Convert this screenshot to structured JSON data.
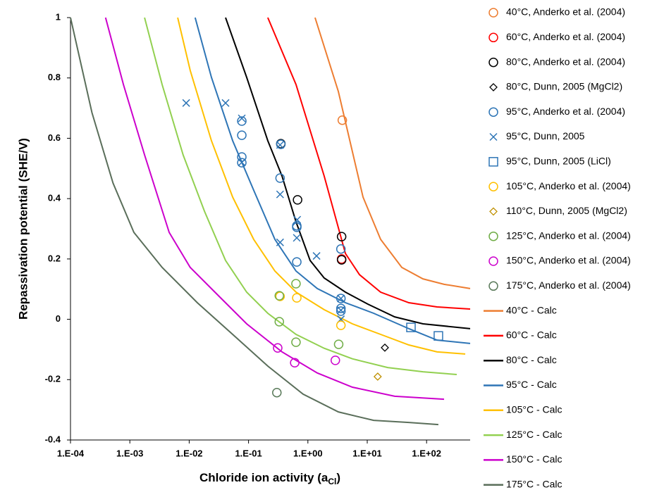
{
  "chart_data": {
    "type": "scatter",
    "xlabel": [
      "Chloride ion activity (a",
      "Cl",
      ")"
    ],
    "ylabel": "Repassivation potential (SHE/V)",
    "xscale": "log",
    "xlim": [
      0.0001,
      542
    ],
    "ylim": [
      -0.4,
      1
    ],
    "xticks": [
      {
        "value": 0.0001,
        "label": "1.E-04"
      },
      {
        "value": 0.001,
        "label": "1.E-03"
      },
      {
        "value": 0.01,
        "label": "1.E-02"
      },
      {
        "value": 0.1,
        "label": "1.E-01"
      },
      {
        "value": 1,
        "label": "1.E+00"
      },
      {
        "value": 10,
        "label": "1.E+01"
      },
      {
        "value": 100,
        "label": "1.E+02"
      }
    ],
    "yticks": [
      -0.4,
      -0.2,
      0,
      0.2,
      0.4,
      0.6,
      0.8,
      1
    ],
    "grid": false,
    "legend": "right",
    "series": [
      {
        "name": "40°C, Anderko et al. (2004)",
        "color": "#ed7d31",
        "style": "circle",
        "x": [
          3.8
        ],
        "values": [
          0.66
        ]
      },
      {
        "name": "60°C, Anderko et al. (2004)",
        "color": "#ff0000",
        "style": "circle",
        "x": [
          3.7
        ],
        "values": [
          0.2
        ]
      },
      {
        "name": "80°C, Anderko et al. (2004)",
        "color": "#000000",
        "style": "circle",
        "x": [
          0.35,
          0.67,
          3.7,
          3.7
        ],
        "values": [
          0.582,
          0.396,
          0.274,
          0.197
        ]
      },
      {
        "name": "80°C, Dunn, 2005 (MgCl2)",
        "color": "#000000",
        "style": "diamond",
        "x": [
          19.8
        ],
        "values": [
          -0.094
        ]
      },
      {
        "name": "95°C, Anderko et al. (2004)",
        "color": "#2e75b6",
        "style": "circle",
        "x": [
          0.077,
          0.077,
          0.077,
          0.077,
          0.35,
          0.34,
          0.65,
          0.65,
          0.65,
          3.6,
          3.6,
          3.6,
          3.6
        ],
        "values": [
          0.657,
          0.61,
          0.538,
          0.519,
          0.58,
          0.468,
          0.31,
          0.305,
          0.19,
          0.233,
          0.069,
          0.036,
          0.027
        ]
      },
      {
        "name": "95°C, Dunn, 2005",
        "color": "#2e75b6",
        "style": "x",
        "x": [
          0.0089,
          0.041,
          0.077,
          0.077,
          0.34,
          0.34,
          0.34,
          0.66,
          0.65,
          1.4,
          3.6,
          3.6,
          3.6
        ],
        "values": [
          0.717,
          0.717,
          0.666,
          0.52,
          0.578,
          0.414,
          0.255,
          0.33,
          0.27,
          0.21,
          0.069,
          0.03,
          0.0
        ]
      },
      {
        "name": "95°C, Dunn, 2005 (LiCl)",
        "color": "#2e75b6",
        "style": "square",
        "x": [
          54.5,
          158
        ],
        "values": [
          -0.027,
          -0.055
        ]
      },
      {
        "name": "105°C, Anderko et al. (2004)",
        "color": "#ffc000",
        "style": "circle",
        "x": [
          0.34,
          0.65,
          3.6
        ],
        "values": [
          0.076,
          0.071,
          -0.02
        ]
      },
      {
        "name": "110°C, Dunn, 2005 (MgCl2)",
        "color": "#bf9000",
        "style": "diamond",
        "x": [
          15
        ],
        "values": [
          -0.19
        ]
      },
      {
        "name": "125°C, Anderko et al. (2004)",
        "color": "#70ad47",
        "style": "circle",
        "x": [
          0.33,
          0.63,
          0.33,
          0.63,
          3.3
        ],
        "values": [
          0.078,
          0.118,
          -0.008,
          -0.076,
          -0.083
        ]
      },
      {
        "name": "150°C, Anderko et al. (2004)",
        "color": "#cc00cc",
        "style": "circle",
        "x": [
          0.31,
          0.6,
          2.9
        ],
        "values": [
          -0.095,
          -0.144,
          -0.136
        ]
      },
      {
        "name": "175°C, Anderko et al. (2004)",
        "color": "#5a7a5a",
        "style": "circle",
        "x": [
          0.3
        ],
        "values": [
          -0.243
        ]
      },
      {
        "name": "40°C  - Calc",
        "color": "#ed7d31",
        "style": "line",
        "x": [
          1.32,
          3.26,
          8.49,
          16.8,
          38.2,
          86.7,
          197,
          542
        ],
        "values": [
          1,
          0.755,
          0.405,
          0.265,
          0.172,
          0.134,
          0.116,
          0.102
        ]
      },
      {
        "name": "60°C  - Calc",
        "color": "#ff0000",
        "style": "line",
        "x": [
          0.211,
          0.631,
          1.88,
          4.29,
          7.4,
          16.8,
          50.2,
          150,
          542
        ],
        "values": [
          1,
          0.778,
          0.475,
          0.218,
          0.148,
          0.09,
          0.055,
          0.041,
          0.034
        ]
      },
      {
        "name": "80°C  - Calc",
        "color": "#000000",
        "style": "line",
        "x": [
          0.041,
          0.093,
          0.211,
          0.366,
          0.631,
          1.09,
          1.88,
          4.29,
          10.3,
          29.0,
          86.7,
          542
        ],
        "values": [
          1,
          0.802,
          0.592,
          0.475,
          0.323,
          0.195,
          0.137,
          0.09,
          0.05,
          0.008,
          -0.015,
          -0.031
        ]
      },
      {
        "name": "95°C  - Calc",
        "color": "#2e75b6",
        "style": "line",
        "x": [
          0.0126,
          0.0237,
          0.054,
          0.122,
          0.278,
          0.631,
          1.44,
          4.29,
          12.8,
          50.2,
          150,
          542
        ],
        "values": [
          1,
          0.802,
          0.592,
          0.428,
          0.265,
          0.16,
          0.102,
          0.055,
          0.02,
          -0.031,
          -0.069,
          -0.08
        ]
      },
      {
        "name": "105°C  - Calc",
        "color": "#ffc000",
        "style": "line",
        "x": [
          0.0064,
          0.0104,
          0.0237,
          0.054,
          0.122,
          0.278,
          0.631,
          1.88,
          5.62,
          16.8,
          50.2,
          150,
          448
        ],
        "values": [
          1,
          0.825,
          0.592,
          0.405,
          0.265,
          0.16,
          0.09,
          0.032,
          -0.015,
          -0.05,
          -0.085,
          -0.108,
          -0.115
        ]
      },
      {
        "name": "125°C  - Calc",
        "color": "#92d050",
        "style": "line",
        "x": [
          0.00177,
          0.0035,
          0.0079,
          0.0181,
          0.041,
          0.093,
          0.211,
          0.631,
          1.88,
          5.62,
          22.1,
          86.7,
          322
        ],
        "values": [
          1,
          0.778,
          0.545,
          0.358,
          0.195,
          0.09,
          0.02,
          -0.05,
          -0.096,
          -0.131,
          -0.16,
          -0.174,
          -0.183
        ]
      },
      {
        "name": "150°C  - Calc",
        "color": "#cc00cc",
        "style": "line",
        "x": [
          0.00039,
          0.00078,
          0.00177,
          0.0046,
          0.0104,
          0.0312,
          0.093,
          0.366,
          1.44,
          5.62,
          29.0,
          197
        ],
        "values": [
          1,
          0.778,
          0.545,
          0.288,
          0.172,
          0.078,
          -0.015,
          -0.108,
          -0.178,
          -0.225,
          -0.255,
          -0.265
        ]
      },
      {
        "name": "175°C  - Calc",
        "color": "#5a6e5a",
        "style": "line",
        "x": [
          0.0001,
          0.00023,
          0.00052,
          0.00117,
          0.0035,
          0.0137,
          0.054,
          0.211,
          0.83,
          3.26,
          12.8,
          50.2,
          158
        ],
        "values": [
          1,
          0.685,
          0.452,
          0.288,
          0.172,
          0.055,
          -0.05,
          -0.155,
          -0.248,
          -0.307,
          -0.335,
          -0.342,
          -0.349
        ]
      }
    ]
  }
}
